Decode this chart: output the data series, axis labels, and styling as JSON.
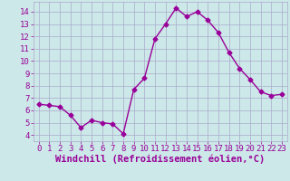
{
  "x": [
    0,
    1,
    2,
    3,
    4,
    5,
    6,
    7,
    8,
    9,
    10,
    11,
    12,
    13,
    14,
    15,
    16,
    17,
    18,
    19,
    20,
    21,
    22,
    23
  ],
  "y": [
    6.5,
    6.4,
    6.3,
    5.6,
    4.6,
    5.2,
    5.0,
    4.9,
    4.1,
    7.7,
    8.6,
    11.8,
    13.0,
    14.3,
    13.6,
    14.0,
    13.3,
    12.3,
    10.7,
    9.4,
    8.5,
    7.5,
    7.2,
    7.3
  ],
  "line_color": "#990099",
  "marker": "D",
  "markersize": 2.5,
  "linewidth": 1.0,
  "background_color": "#cce8e8",
  "grid_color": "#aaaacc",
  "xlabel": "Windchill (Refroidissement éolien,°C)",
  "xlabel_color": "#990099",
  "xlabel_fontsize": 7.5,
  "tick_color": "#990099",
  "tick_fontsize": 6.5,
  "ylim": [
    3.5,
    14.8
  ],
  "xlim": [
    -0.5,
    23.5
  ],
  "yticks": [
    4,
    5,
    6,
    7,
    8,
    9,
    10,
    11,
    12,
    13,
    14
  ],
  "xticks": [
    0,
    1,
    2,
    3,
    4,
    5,
    6,
    7,
    8,
    9,
    10,
    11,
    12,
    13,
    14,
    15,
    16,
    17,
    18,
    19,
    20,
    21,
    22,
    23
  ]
}
